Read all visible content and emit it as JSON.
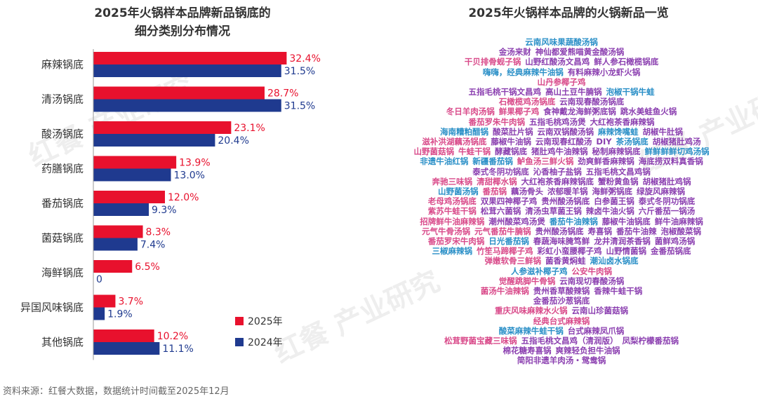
{
  "left_title_line1": "2025年火锅样本品牌新品锅底的",
  "left_title_line2": "细分类别分布情况",
  "right_title": "2025年火锅样本品牌的火锅新品一览",
  "source": "资料来源：红餐大数据，数据统计时间截至2025年12月",
  "watermark_text": "红餐 产业研究",
  "colors": {
    "s2025": "#e8112d",
    "s2024": "#1f3a8f",
    "pink": "#d94a8a",
    "purple": "#8b3fb0",
    "blue": "#2a8fc7"
  },
  "chart_data": {
    "type": "bar",
    "orientation": "horizontal",
    "categories": [
      "麻辣锅底",
      "清汤锅底",
      "酸汤锅底",
      "药膳锅底",
      "番茄锅底",
      "菌菇锅底",
      "海鲜锅底",
      "异国风味锅底",
      "其他锅底"
    ],
    "series": [
      {
        "name": "2025年",
        "values": [
          32.4,
          28.7,
          23.1,
          13.9,
          12.0,
          8.3,
          6.5,
          3.7,
          10.2
        ],
        "labels": [
          "32.4%",
          "28.7%",
          "23.1%",
          "13.9%",
          "12.0%",
          "8.3%",
          "6.5%",
          "3.7%",
          "10.2%"
        ]
      },
      {
        "name": "2024年",
        "values": [
          31.5,
          31.5,
          20.4,
          13.0,
          9.3,
          7.4,
          0,
          1.9,
          11.1
        ],
        "labels": [
          "31.5%",
          "31.5%",
          "20.4%",
          "13.0%",
          "9.3%",
          "7.4%",
          "0",
          "1.9%",
          "11.1%"
        ]
      }
    ],
    "xlim": [
      0,
      40
    ],
    "legend": [
      "2025年",
      "2024年"
    ]
  },
  "word_cloud": [
    {
      "t": "云南风味果蔬酸汤锅",
      "c": "blue"
    },
    {
      "t": "金汤来财",
      "c": "purple"
    },
    {
      "t": "神仙都爱熊喵黄金酸汤锅",
      "c": "purple"
    },
    {
      "t": "干贝排骨蚬子锅",
      "c": "pink"
    },
    {
      "t": "山野红酸汤文昌鸡",
      "c": "purple"
    },
    {
      "t": "鲜人参石橄榄锅底",
      "c": "purple"
    },
    {
      "t": "嗨嗨，经典麻辣牛油锅",
      "c": "blue"
    },
    {
      "t": "有料麻辣小龙虾火锅",
      "c": "purple"
    },
    {
      "t": "山丹参椰子鸡",
      "c": "pink"
    },
    {
      "t": "五指毛桃干锅文昌鸡",
      "c": "purple"
    },
    {
      "t": "高山土豆牛腩锅",
      "c": "purple"
    },
    {
      "t": "泡椒干锅牛蛙",
      "c": "blue"
    },
    {
      "t": "石橄榄鸡汤锅底",
      "c": "pink"
    },
    {
      "t": "云南现春酸汤锅底",
      "c": "purple"
    },
    {
      "t": "冬日羊肉汤锅",
      "c": "pink"
    },
    {
      "t": "鲜果椰子鸡",
      "c": "pink"
    },
    {
      "t": "食神戴龙海鲜粥底锅",
      "c": "purple"
    },
    {
      "t": "跳水美蛙鱼火锅",
      "c": "purple"
    },
    {
      "t": "番茄罗朱牛肉锅",
      "c": "pink"
    },
    {
      "t": "五指毛桃鸡汤煲",
      "c": "purple"
    },
    {
      "t": "大红袍茶香麻辣锅",
      "c": "purple"
    },
    {
      "t": "海南糟粕醋锅",
      "c": "blue"
    },
    {
      "t": "酸菜肚片锅",
      "c": "purple"
    },
    {
      "t": "云南双锅酸汤锅",
      "c": "purple"
    },
    {
      "t": "麻辣馋嘴蛙",
      "c": "blue"
    },
    {
      "t": "胡椒牛肚锅",
      "c": "purple"
    },
    {
      "t": "滋补洪湖藕汤锅底",
      "c": "pink"
    },
    {
      "t": "藤椒牛油锅",
      "c": "purple"
    },
    {
      "t": "云南现春红酸汤",
      "c": "purple"
    },
    {
      "t": "DIY",
      "c": "purple"
    },
    {
      "t": "茶汤锅底",
      "c": "blue"
    },
    {
      "t": "胡椒猪肚鸡汤",
      "c": "purple"
    },
    {
      "t": "山野菌菇锅",
      "c": "pink"
    },
    {
      "t": "牛蛙干锅",
      "c": "pink"
    },
    {
      "t": "酵藏锅底",
      "c": "purple"
    },
    {
      "t": "猪肚鸡牛油辣锅",
      "c": "purple"
    },
    {
      "t": "秘制麻辣锅底",
      "c": "purple"
    },
    {
      "t": "鲜鲜鲜鲜切鸡汤锅",
      "c": "blue"
    },
    {
      "t": "非遗牛油红锅",
      "c": "blue"
    },
    {
      "t": "新疆番茄锅",
      "c": "blue"
    },
    {
      "t": "鲈鱼汤三鲜火锅",
      "c": "pink"
    },
    {
      "t": "劲爽鲜香麻辣锅",
      "c": "purple"
    },
    {
      "t": "海底捞双料真香锅",
      "c": "purple"
    },
    {
      "t": "泰式冬阴功锅底",
      "c": "purple"
    },
    {
      "t": "沁香柚子盐锅",
      "c": "purple"
    },
    {
      "t": "五指毛桃文昌鸡锅",
      "c": "purple"
    },
    {
      "t": "奔驰三味锅",
      "c": "pink"
    },
    {
      "t": "清甜椰水锅",
      "c": "pink"
    },
    {
      "t": "大红袍茶香麻辣锅底",
      "c": "purple"
    },
    {
      "t": "蟹粉黄鱼锅",
      "c": "purple"
    },
    {
      "t": "胡椒猪肚鸡锅",
      "c": "purple"
    },
    {
      "t": "山野菌汤锅",
      "c": "blue"
    },
    {
      "t": "番茄锅",
      "c": "pink"
    },
    {
      "t": "藕汤骨头",
      "c": "purple"
    },
    {
      "t": "浓郁暖羊锅",
      "c": "purple"
    },
    {
      "t": "海鲜粥锅底",
      "c": "purple"
    },
    {
      "t": "绿旋风麻辣锅",
      "c": "purple"
    },
    {
      "t": "老母鸡汤锅底",
      "c": "pink"
    },
    {
      "t": "双果四神椰子鸡",
      "c": "purple"
    },
    {
      "t": "贵州酸汤锅底",
      "c": "purple"
    },
    {
      "t": "白参菌王锅",
      "c": "purple"
    },
    {
      "t": "泰式冬阴功锅底",
      "c": "purple"
    },
    {
      "t": "紫苏牛蛙干锅",
      "c": "pink"
    },
    {
      "t": "松茸六菌锅",
      "c": "purple"
    },
    {
      "t": "清汤虫草菌王锅",
      "c": "purple"
    },
    {
      "t": "辣卤牛油火锅",
      "c": "purple"
    },
    {
      "t": "六斤番茄一锅汤",
      "c": "purple"
    },
    {
      "t": "招牌鲜牛油麻辣锅",
      "c": "pink"
    },
    {
      "t": "潮州酸菜鸡汤煲",
      "c": "purple"
    },
    {
      "t": "番茄牛油辣锅",
      "c": "blue"
    },
    {
      "t": "藤椒牛油锅底",
      "c": "purple"
    },
    {
      "t": "鲜牛油麻辣锅",
      "c": "purple"
    },
    {
      "t": "元气牛骨汤锅",
      "c": "pink"
    },
    {
      "t": "元气番茄牛腩锅",
      "c": "pink"
    },
    {
      "t": "贵州酸汤锅底",
      "c": "purple"
    },
    {
      "t": "寿喜锅",
      "c": "purple"
    },
    {
      "t": "番茄牛油辣",
      "c": "purple"
    },
    {
      "t": "泡椒酸菜锅",
      "c": "purple"
    },
    {
      "t": "番茄罗宋牛肉锅",
      "c": "pink"
    },
    {
      "t": "日光番茄锅",
      "c": "blue"
    },
    {
      "t": "春蔬海味腌笃鲜",
      "c": "purple"
    },
    {
      "t": "龙井清润茶香锅",
      "c": "purple"
    },
    {
      "t": "菌鲜鸡汤锅",
      "c": "purple"
    },
    {
      "t": "三椒麻辣锅",
      "c": "blue"
    },
    {
      "t": "竹笙马蹄椰子鸡",
      "c": "pink"
    },
    {
      "t": "彩虹小蛮腰椰子鸡",
      "c": "purple"
    },
    {
      "t": "山野情菌锅",
      "c": "purple"
    },
    {
      "t": "金番茄锅底",
      "c": "purple"
    },
    {
      "t": "弹嫩软骨三鲜锅",
      "c": "pink"
    },
    {
      "t": "菌香黄焖蛙",
      "c": "purple"
    },
    {
      "t": "潮汕卤水锅底",
      "c": "blue"
    },
    {
      "t": "人参滋补椰子鸡",
      "c": "blue"
    },
    {
      "t": "公安牛肉锅",
      "c": "pink"
    },
    {
      "t": "觉醒跳脚牛骨锅",
      "c": "pink"
    },
    {
      "t": "云南现切春酸汤锅",
      "c": "purple"
    },
    {
      "t": "菌汤牛油辣锅",
      "c": "pink"
    },
    {
      "t": "贵州香草酸辣锅",
      "c": "purple"
    },
    {
      "t": "香辣牛蛙干锅",
      "c": "purple"
    },
    {
      "t": "金番茄沙葱锅底",
      "c": "purple"
    },
    {
      "t": "重庆风味麻辣水火锅",
      "c": "pink"
    },
    {
      "t": "云南山珍菌菇锅",
      "c": "purple"
    },
    {
      "t": "经典台式麻辣锅",
      "c": "pink"
    },
    {
      "t": "酸菜麻辣牛蛙干锅",
      "c": "blue"
    },
    {
      "t": "台式麻辣凤爪锅",
      "c": "purple"
    },
    {
      "t": "松茸野菌宝藏三味锅",
      "c": "pink"
    },
    {
      "t": "五指毛桃文昌鸡（清润版）",
      "c": "purple"
    },
    {
      "t": "凤梨柠檬番茄锅",
      "c": "purple"
    },
    {
      "t": "棉花糖寿喜锅",
      "c": "purple"
    },
    {
      "t": "爽辣轻负担牛油锅",
      "c": "purple"
    },
    {
      "t": "简阳非遗羊肉汤・鸳鸯锅",
      "c": "purple"
    }
  ]
}
